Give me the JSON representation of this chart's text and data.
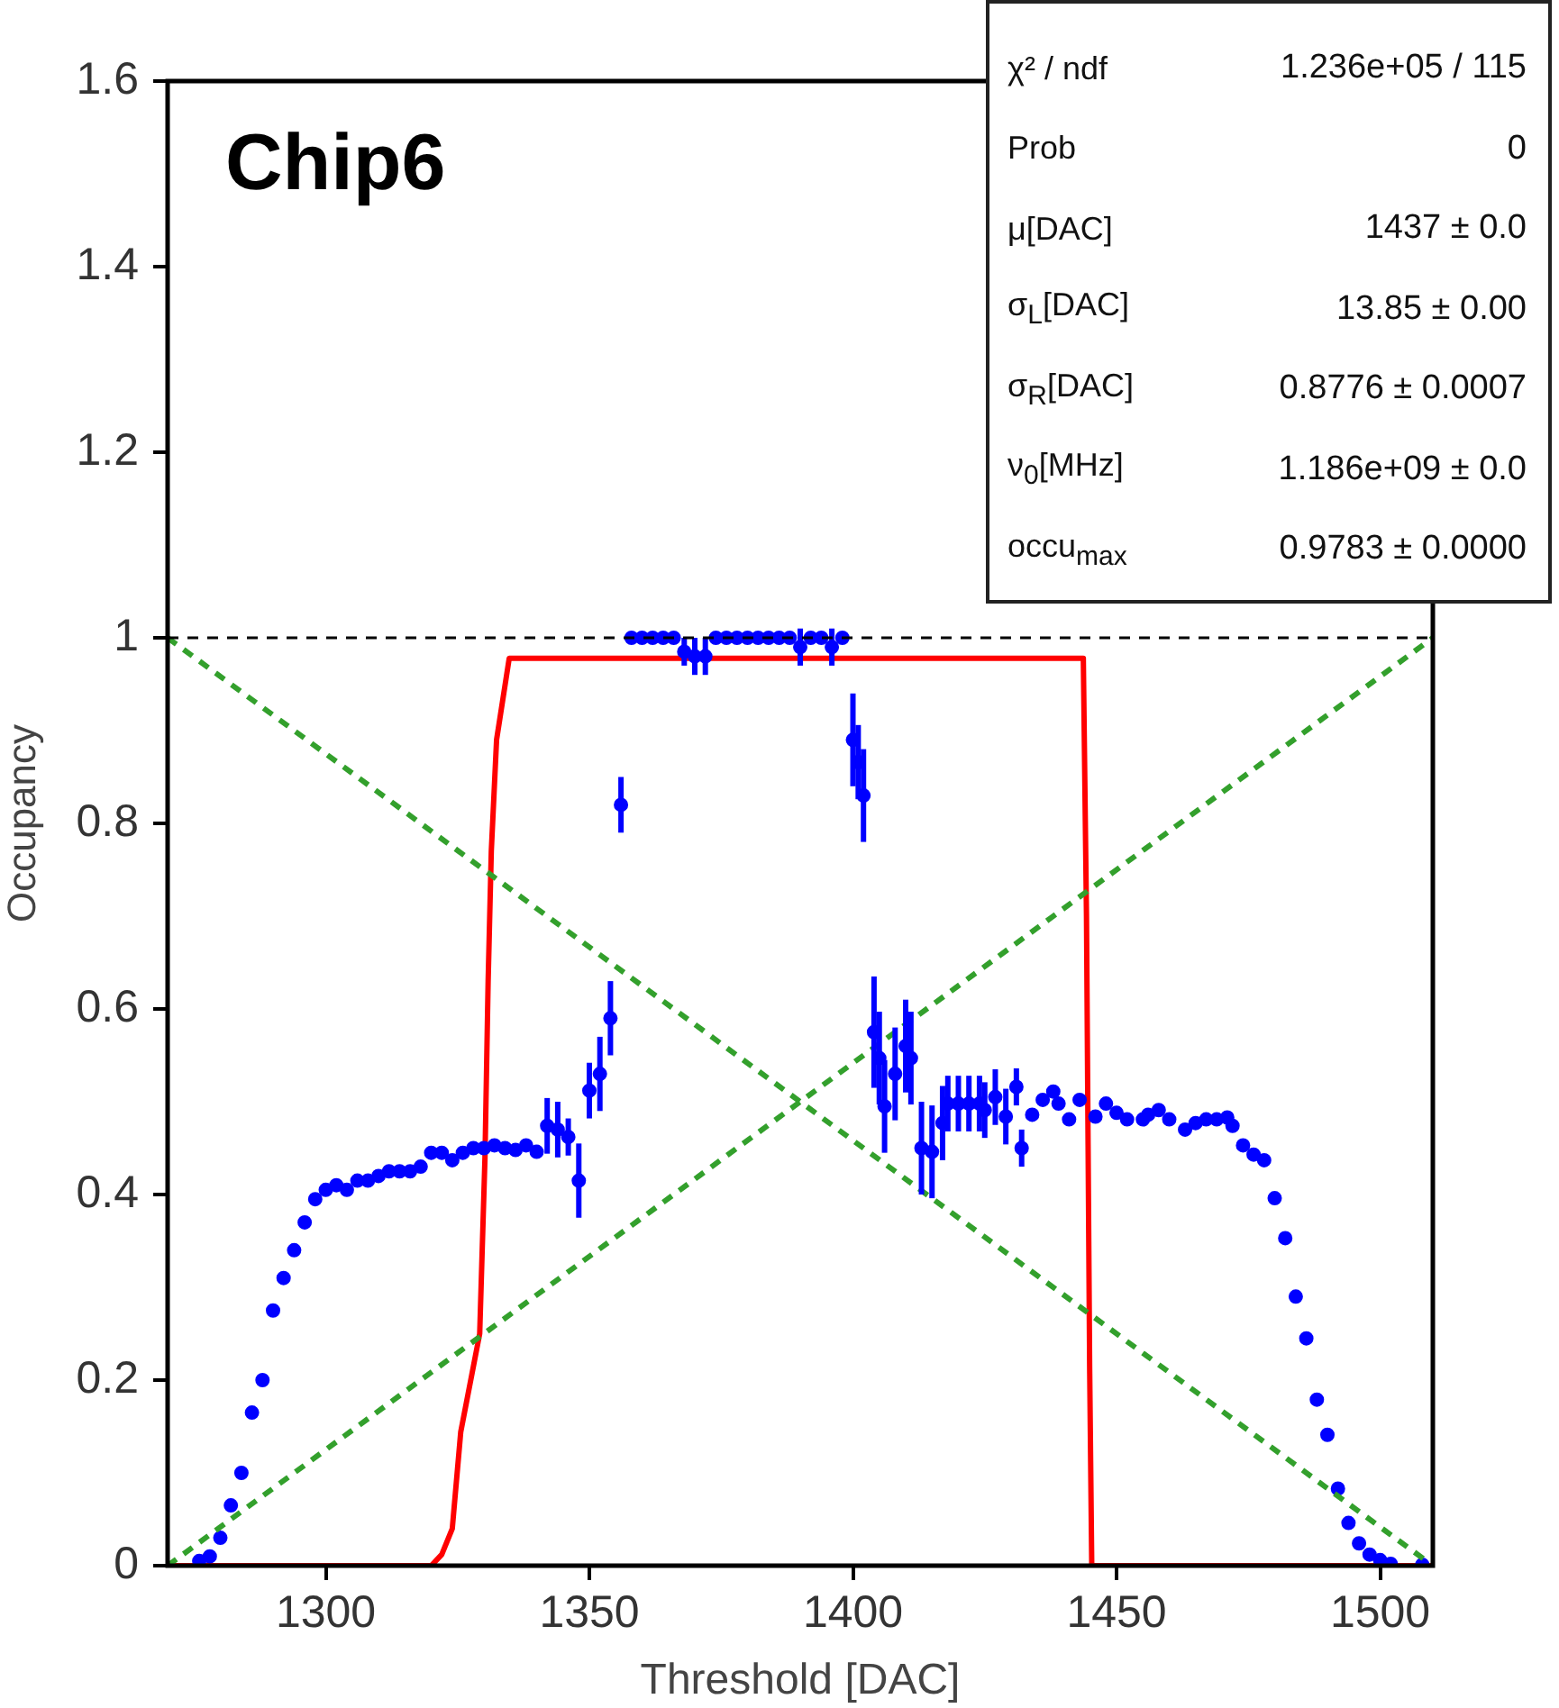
{
  "chart_data": {
    "type": "scatter",
    "xlabel": "Threshold [DAC]",
    "ylabel": "Occupancy",
    "xlim": [
      1270,
      1510
    ],
    "xticks": [
      1300,
      1350,
      1400,
      1450,
      1500
    ],
    "ylim": [
      0,
      1.6
    ],
    "yticks": [
      0,
      0.2,
      0.4,
      0.6,
      0.8,
      1,
      1.2,
      1.4,
      1.6
    ],
    "grid": false,
    "legend": false,
    "ref_lines": [
      {
        "axis": "y",
        "value": 1,
        "color": "#000000",
        "line_style": "dashed"
      }
    ],
    "annotations": [
      "Chip6",
      "χ² / ndf",
      "1.236e+05 / 115",
      "Prob",
      "0",
      "μ[DAC]",
      "1437 ± 0.0",
      "σ$_{L}$[DAC]",
      "13.85 ± 0.00",
      "σ$_{R}$[DAC]",
      "0.8776 ± 0.0007",
      "ν$_{0}$[MHz]",
      "1.186e+09 ± 0.0",
      "occu$_{max}$",
      "0.9783 ± 0.0000"
    ],
    "series": [
      {
        "type": "line",
        "color": "#33a02c",
        "line_style": "dashed",
        "marker": "none",
        "x": [
          1270,
          1510
        ],
        "values": [
          1,
          0
        ]
      },
      {
        "type": "line",
        "color": "#33a02c",
        "line_style": "dashed",
        "marker": "none",
        "x": [
          1270,
          1510
        ],
        "values": [
          0,
          1
        ]
      },
      {
        "type": "scatter",
        "color": "#0000ff",
        "marker": "circle",
        "x": [
          1276,
          1278,
          1280,
          1282,
          1284,
          1286,
          1288,
          1290,
          1292,
          1294,
          1296,
          1298,
          1300,
          1302,
          1304,
          1306,
          1308,
          1310,
          1312,
          1314,
          1316,
          1318,
          1320,
          1322,
          1324,
          1326,
          1328,
          1330,
          1332,
          1334,
          1336,
          1338,
          1340,
          1342,
          1344,
          1346,
          1348,
          1350,
          1352,
          1354,
          1356,
          1358,
          1360,
          1362,
          1364,
          1366,
          1368,
          1370,
          1372,
          1374,
          1376,
          1378,
          1380,
          1382,
          1384,
          1386,
          1388,
          1390,
          1392,
          1394,
          1396,
          1398,
          1400,
          1401,
          1402,
          1404,
          1405,
          1406,
          1408,
          1410,
          1411,
          1413,
          1415,
          1417,
          1418,
          1420,
          1422,
          1424,
          1425,
          1427,
          1429,
          1431,
          1432,
          1434,
          1436,
          1438,
          1439,
          1441,
          1443,
          1446,
          1448,
          1450,
          1452,
          1455,
          1456,
          1458,
          1460,
          1463,
          1465,
          1467,
          1469,
          1471,
          1472,
          1474,
          1476,
          1478,
          1480,
          1482,
          1484,
          1486,
          1488,
          1490,
          1492,
          1494,
          1496,
          1498,
          1500,
          1502,
          1508
        ],
        "values": [
          0.005,
          0.01,
          0.03,
          0.065,
          0.1,
          0.165,
          0.2,
          0.275,
          0.31,
          0.34,
          0.37,
          0.395,
          0.405,
          0.41,
          0.405,
          0.415,
          0.415,
          0.42,
          0.425,
          0.425,
          0.425,
          0.43,
          0.445,
          0.445,
          0.437,
          0.445,
          0.45,
          0.45,
          0.453,
          0.45,
          0.448,
          0.453,
          0.446,
          0.474,
          0.47,
          0.462,
          0.415,
          0.512,
          0.53,
          0.59,
          0.82,
          1,
          1,
          1,
          1,
          1,
          0.985,
          0.98,
          0.98,
          1,
          1,
          1,
          1,
          1,
          1,
          1,
          1,
          0.99,
          1,
          1,
          0.99,
          1,
          0.89,
          0.866,
          0.83,
          0.575,
          0.547,
          0.495,
          0.53,
          0.56,
          0.547,
          0.45,
          0.446,
          0.477,
          0.498,
          0.498,
          0.498,
          0.498,
          0.491,
          0.505,
          0.484,
          0.516,
          0.45,
          0.486,
          0.502,
          0.511,
          0.498,
          0.481,
          0.502,
          0.484,
          0.498,
          0.488,
          0.481,
          0.481,
          0.486,
          0.491,
          0.481,
          0.47,
          0.477,
          0.481,
          0.481,
          0.483,
          0.474,
          0.453,
          0.443,
          0.437,
          0.396,
          0.353,
          0.29,
          0.245,
          0.179,
          0.141,
          0.083,
          0.046,
          0.024,
          0.012,
          0.006,
          0.002,
          0.001
        ],
        "errors": [
          null,
          null,
          null,
          null,
          null,
          null,
          null,
          null,
          null,
          null,
          null,
          null,
          null,
          null,
          null,
          null,
          null,
          null,
          null,
          null,
          null,
          null,
          null,
          null,
          null,
          null,
          null,
          null,
          null,
          null,
          null,
          null,
          null,
          0.03,
          0.03,
          0.02,
          0.04,
          0.03,
          0.04,
          0.04,
          0.03,
          null,
          null,
          null,
          null,
          null,
          0.015,
          0.02,
          0.02,
          null,
          null,
          null,
          null,
          null,
          null,
          null,
          null,
          0.02,
          null,
          null,
          0.02,
          null,
          0.05,
          0.04,
          0.05,
          0.06,
          0.05,
          0.05,
          0.05,
          0.05,
          0.05,
          0.05,
          0.05,
          0.04,
          0.03,
          0.03,
          0.03,
          0.03,
          0.03,
          0.03,
          0.03,
          0.02,
          0.02,
          null,
          null,
          null,
          null,
          null,
          null,
          null,
          null,
          null,
          null,
          null,
          null,
          null,
          null,
          null,
          null,
          null,
          null,
          null,
          null,
          null,
          null,
          null,
          null,
          null,
          null,
          null,
          null,
          null,
          null,
          null,
          null,
          null,
          null,
          null,
          null
        ]
      },
      {
        "type": "line",
        "color": "#ff0000",
        "marker": "none",
        "x": [
          1270,
          1320,
          1322,
          1324,
          1325.6,
          1329.2,
          1330.2,
          1330.8,
          1331.4,
          1332.4,
          1334.8,
          1443.7,
          1444.3,
          1444.9,
          1445.3,
          1510
        ],
        "values": [
          0,
          0,
          0.012,
          0.04,
          0.144,
          0.25,
          0.44,
          0.63,
          0.77,
          0.89,
          0.978,
          0.978,
          0.7,
          0.214,
          0,
          0
        ]
      }
    ]
  }
}
